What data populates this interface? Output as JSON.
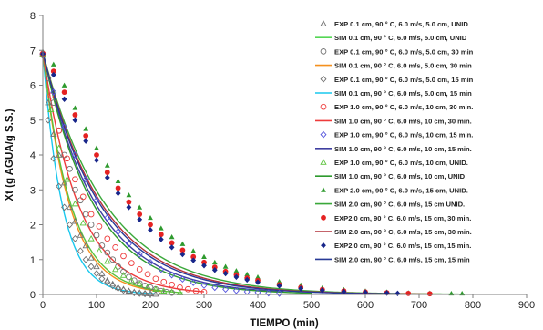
{
  "chart_data": {
    "type": "scatter",
    "title": "",
    "xlabel": "TIEMPO (min)",
    "ylabel": "Xt (g AGUA/g S.S.)",
    "xlim": [
      0,
      900
    ],
    "ylim": [
      0,
      8
    ],
    "xticks": [
      "0",
      "100",
      "200",
      "300",
      "400",
      "500",
      "600",
      "700",
      "800",
      "900"
    ],
    "yticks": [
      "0",
      "1",
      "2",
      "3",
      "4",
      "5",
      "6",
      "7",
      "8"
    ],
    "grid": false,
    "legend_position": "right",
    "curves": [
      {
        "color": "#19c8ee",
        "k": 0.0275,
        "x_end": 210
      },
      {
        "color": "#f5901e",
        "k": 0.02,
        "x_end": 220
      },
      {
        "color": "#5bc23c",
        "k": 0.019,
        "x_end": 260
      },
      {
        "color": "#ee3b3b",
        "k": 0.015,
        "x_end": 300
      },
      {
        "color": "#3f3fa0",
        "k": 0.01,
        "x_end": 450
      },
      {
        "color": "#2e9a2e",
        "k": 0.0105,
        "x_end": 500
      },
      {
        "color": "#3aa83a",
        "k": 0.0085,
        "x_end": 780
      },
      {
        "color": "#b2303a",
        "k": 0.009,
        "x_end": 720
      },
      {
        "color": "#283a96",
        "k": 0.0093,
        "x_end": 660
      }
    ],
    "series": [
      {
        "name": "EXP 0.1 cm, 90 ° C, 6.0 m/s, 5.0 cm, UNID",
        "marker": "triangle-open",
        "color": "#707070",
        "x": [
          0,
          10,
          20,
          30,
          40,
          50,
          60,
          70,
          80,
          90,
          100,
          110,
          120,
          130,
          140,
          150,
          160,
          170,
          180,
          190,
          200,
          210
        ],
        "y": [
          6.95,
          5.5,
          4.6,
          4.0,
          3.2,
          2.5,
          2.1,
          1.7,
          1.4,
          1.05,
          0.8,
          0.6,
          0.4,
          0.3,
          0.2,
          0.15,
          0.1,
          0.07,
          0.05,
          0.03,
          0.02,
          0.01
        ]
      },
      {
        "name": "SIM 0.1 cm, 90 ° C, 6.0 m/s, 5.0 cm, UNID",
        "marker": "line",
        "color": "#55d655",
        "x": [],
        "y": []
      },
      {
        "name": "EXP 0.1 cm, 90 ° C, 6.0 m/s, 5.0 cm, 30 min",
        "marker": "circle-open",
        "color": "#707070",
        "x": [
          0,
          10,
          20,
          30,
          40,
          50,
          60,
          70,
          80,
          90,
          100,
          110,
          120,
          130,
          140,
          150,
          160,
          170,
          180,
          190,
          200,
          210,
          220,
          230,
          240
        ],
        "y": [
          6.9,
          6.2,
          5.5,
          4.7,
          4.0,
          3.6,
          3.0,
          2.7,
          2.3,
          2.0,
          1.7,
          1.4,
          1.2,
          1.0,
          0.8,
          0.65,
          0.5,
          0.4,
          0.32,
          0.25,
          0.2,
          0.15,
          0.1,
          0.07,
          0.05
        ]
      },
      {
        "name": "SIM 0.1 cm, 90 ° C, 6.0 m/s, 5.0 cm, 30 min",
        "marker": "line",
        "color": "#f5901e",
        "x": [],
        "y": []
      },
      {
        "name": "EXP 0.1 cm, 90 ° C, 6.0 m/s, 5.0 cm, 15 min",
        "marker": "diamond-open",
        "color": "#707070",
        "x": [
          0,
          10,
          20,
          30,
          40,
          50,
          60,
          70,
          80,
          90,
          100,
          110,
          120,
          130,
          140,
          150,
          160,
          170,
          180,
          190,
          200
        ],
        "y": [
          6.85,
          5.0,
          3.9,
          3.1,
          2.5,
          2.0,
          1.6,
          1.25,
          1.0,
          0.8,
          0.6,
          0.45,
          0.35,
          0.25,
          0.18,
          0.12,
          0.08,
          0.05,
          0.03,
          0.02,
          0.01
        ]
      },
      {
        "name": "SIM 0.1 cm, 90 ° C, 6.0 m/s, 5.0 cm, 15 min",
        "marker": "line",
        "color": "#19c8ee",
        "x": [],
        "y": []
      },
      {
        "name": "EXP 1.0 cm, 90 ° C, 6.0 m/s, 10 cm, 30 min.",
        "marker": "circle-open",
        "color": "#ee3b3b",
        "x": [
          0,
          15,
          30,
          45,
          60,
          75,
          90,
          105,
          120,
          135,
          150,
          165,
          180,
          195,
          210,
          225,
          240,
          255,
          270,
          285,
          300
        ],
        "y": [
          6.9,
          5.7,
          4.7,
          3.9,
          3.3,
          2.8,
          2.3,
          1.95,
          1.6,
          1.35,
          1.1,
          0.9,
          0.72,
          0.58,
          0.45,
          0.36,
          0.28,
          0.2,
          0.15,
          0.1,
          0.07
        ]
      },
      {
        "name": "SIM 1.0 cm, 90 ° C, 6.0 m/s, 10 cm, 30 min.",
        "marker": "line",
        "color": "#ee3b3b",
        "x": [],
        "y": []
      },
      {
        "name": "EXP 1.0 cm, 90 ° C, 6.0 m/s, 10 cm, 15 min.",
        "marker": "diamond-open",
        "color": "#5555dd",
        "x": [
          0,
          20,
          40,
          60,
          80,
          100,
          120,
          140,
          160,
          180,
          200,
          220,
          240,
          260,
          280,
          300,
          320,
          340,
          360,
          380,
          400,
          420,
          440
        ],
        "y": [
          6.9,
          5.8,
          4.8,
          4.0,
          3.3,
          2.7,
          2.2,
          1.8,
          1.45,
          1.15,
          0.92,
          0.72,
          0.56,
          0.44,
          0.34,
          0.26,
          0.2,
          0.15,
          0.11,
          0.08,
          0.06,
          0.04,
          0.03
        ]
      },
      {
        "name": "SIM 1.0 cm, 90 ° C, 6.0 m/s, 10 cm, 15 min.",
        "marker": "line",
        "color": "#3f3fa0",
        "x": [],
        "y": []
      },
      {
        "name": "EXP 1.0 cm, 90 ° C, 6.0 m/s, 10 cm, UNID.",
        "marker": "triangle-open",
        "color": "#5bc23c",
        "x": [
          0,
          15,
          30,
          45,
          60,
          75,
          90,
          105,
          120,
          135,
          150,
          165,
          180,
          195,
          210,
          225,
          240,
          255
        ],
        "y": [
          6.9,
          5.3,
          4.2,
          3.3,
          2.6,
          2.05,
          1.6,
          1.25,
          0.95,
          0.72,
          0.55,
          0.4,
          0.3,
          0.22,
          0.15,
          0.1,
          0.07,
          0.05
        ]
      },
      {
        "name": "SIM 1.0 cm, 90 ° C, 6.0 m/s, 10 cm, UNID",
        "marker": "line",
        "color": "#2e9a2e",
        "x": [],
        "y": []
      },
      {
        "name": "EXP 2.0 cm, 90 ° C, 6.0 m/s, 15 cm, UNID.",
        "marker": "triangle-filled",
        "color": "#2e9a2e",
        "x": [
          0,
          20,
          40,
          60,
          80,
          100,
          120,
          140,
          160,
          180,
          200,
          220,
          240,
          260,
          280,
          300,
          320,
          340,
          360,
          380,
          400,
          440,
          480,
          520,
          560,
          600,
          640,
          680,
          720,
          760,
          780
        ],
        "y": [
          6.95,
          6.6,
          6.0,
          5.35,
          4.75,
          4.2,
          3.7,
          3.25,
          2.85,
          2.5,
          2.2,
          1.9,
          1.65,
          1.45,
          1.25,
          1.08,
          0.92,
          0.8,
          0.68,
          0.58,
          0.5,
          0.37,
          0.27,
          0.19,
          0.14,
          0.1,
          0.07,
          0.05,
          0.04,
          0.03,
          0.03
        ]
      },
      {
        "name": "SIM 2.0 cm, 90 ° C, 6.0 m/s, 15 cm UNID.",
        "marker": "line",
        "color": "#3aa83a",
        "x": [],
        "y": []
      },
      {
        "name": "EXP2.0 cm, 90 ° C, 6.0 m/s, 15 cm, 30 min.",
        "marker": "circle-filled",
        "color": "#e52222",
        "x": [
          0,
          20,
          40,
          60,
          80,
          100,
          120,
          140,
          160,
          180,
          200,
          220,
          240,
          260,
          280,
          300,
          320,
          340,
          360,
          380,
          400,
          440,
          480,
          520,
          560,
          600,
          640,
          680,
          720
        ],
        "y": [
          6.9,
          6.4,
          5.8,
          5.15,
          4.55,
          4.0,
          3.5,
          3.05,
          2.65,
          2.3,
          2.0,
          1.72,
          1.48,
          1.27,
          1.08,
          0.92,
          0.78,
          0.66,
          0.56,
          0.47,
          0.4,
          0.28,
          0.2,
          0.14,
          0.1,
          0.07,
          0.05,
          0.03,
          0.02
        ]
      },
      {
        "name": "SIM 2.0 cm, 90 ° C, 6.0 m/s, 15 cm, 30 min.",
        "marker": "line",
        "color": "#b2303a",
        "x": [],
        "y": []
      },
      {
        "name": "EXP2.0 cm, 90 ° C, 6.0 m/s, 15 cm, 15 min.",
        "marker": "diamond-filled",
        "color": "#18268a",
        "x": [
          0,
          20,
          40,
          60,
          80,
          100,
          120,
          140,
          160,
          180,
          200,
          220,
          240,
          260,
          280,
          300,
          320,
          340,
          360,
          380,
          400,
          440,
          480,
          520,
          560,
          600,
          640,
          660
        ],
        "y": [
          6.9,
          6.3,
          5.6,
          5.0,
          4.4,
          3.85,
          3.35,
          2.9,
          2.5,
          2.15,
          1.85,
          1.58,
          1.35,
          1.15,
          0.98,
          0.83,
          0.7,
          0.6,
          0.5,
          0.42,
          0.35,
          0.25,
          0.17,
          0.12,
          0.08,
          0.06,
          0.04,
          0.03
        ]
      },
      {
        "name": "SIM 2.0 cm, 90 ° C, 6.0 m/s, 15 cm, 15 min",
        "marker": "line",
        "color": "#283a96",
        "x": [],
        "y": []
      }
    ]
  }
}
